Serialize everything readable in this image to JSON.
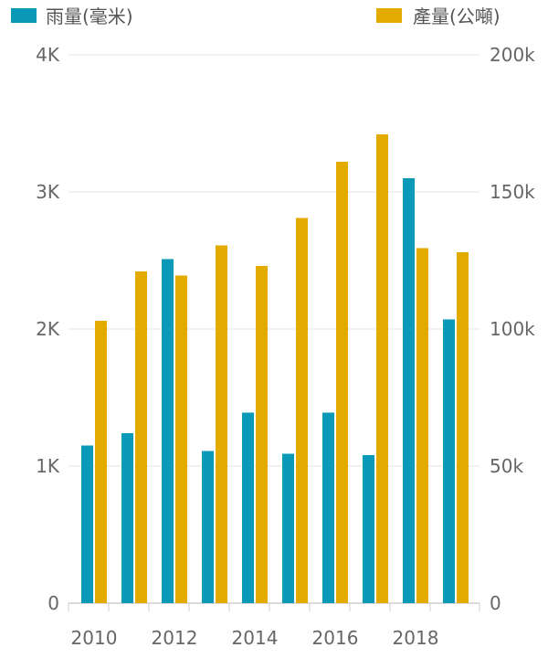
{
  "chart_data": {
    "type": "bar",
    "x": [
      2010,
      2011,
      2012,
      2013,
      2014,
      2015,
      2016,
      2017,
      2018,
      2019
    ],
    "x_tick_labels": [
      "2010",
      "2012",
      "2014",
      "2016",
      "2018"
    ],
    "series": [
      {
        "name": "雨量(毫米)",
        "axis": "left",
        "color": "#0a9ab8",
        "values": [
          1150,
          1240,
          2510,
          1110,
          1390,
          1090,
          1390,
          1080,
          3100,
          2070
        ]
      },
      {
        "name": "產量(公噸)",
        "axis": "right",
        "color": "#e3aa00",
        "values": [
          103000,
          121000,
          119500,
          130500,
          123000,
          140500,
          161000,
          171000,
          129500,
          128000
        ]
      }
    ],
    "y_left": {
      "min": 0,
      "max": 4000,
      "ticks": [
        0,
        1000,
        2000,
        3000,
        4000
      ],
      "tick_labels": [
        "0",
        "1K",
        "2K",
        "3K",
        "4K"
      ]
    },
    "y_right": {
      "min": 0,
      "max": 200000,
      "ticks": [
        0,
        50000,
        100000,
        150000,
        200000
      ],
      "tick_labels": [
        "0",
        "50k",
        "100k",
        "150k",
        "200k"
      ]
    },
    "legend_position": "top",
    "grid": true
  }
}
